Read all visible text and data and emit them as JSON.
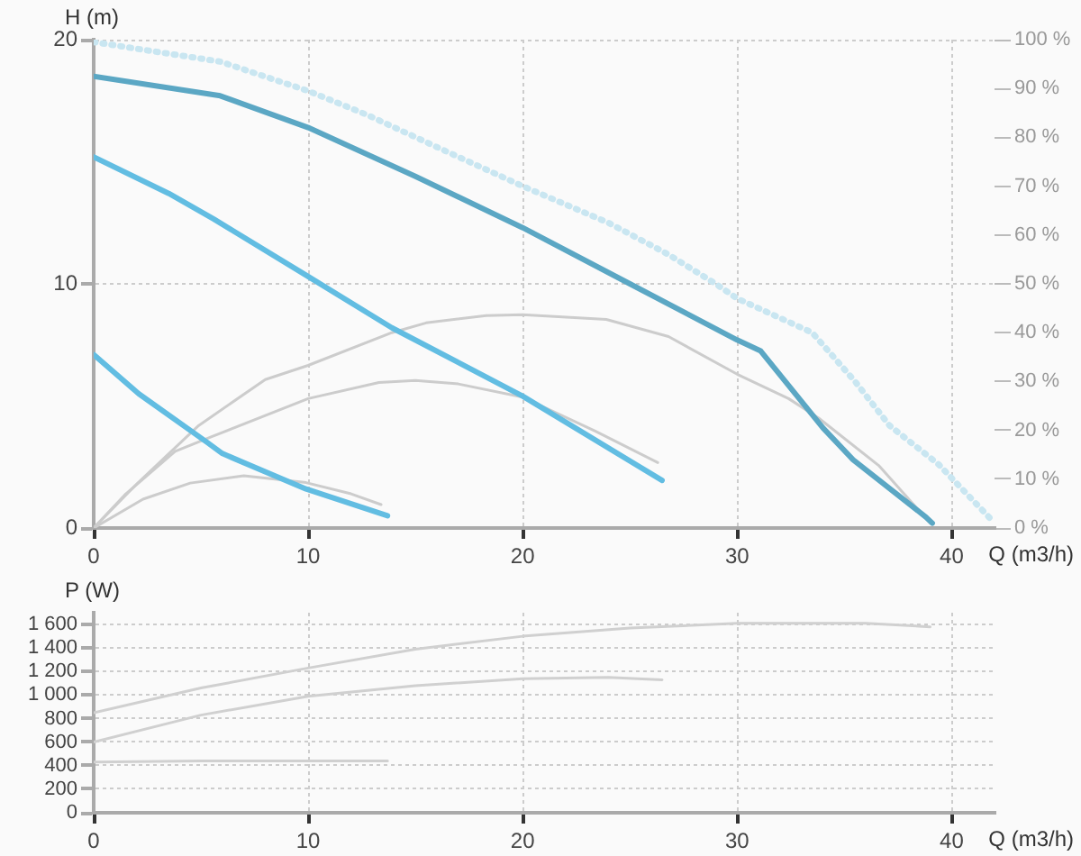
{
  "chart_data": [
    {
      "type": "line",
      "xlabel": "Q (m3/h)",
      "ylabel": "H (m)",
      "xlim": [
        0,
        42
      ],
      "xticks": [
        0,
        10,
        20,
        30,
        40
      ],
      "ylim": [
        0,
        20
      ],
      "yticks": [
        0,
        10,
        20
      ],
      "y2lim": [
        0,
        100
      ],
      "y2ticks": [
        {
          "value": 0,
          "label": "0 %"
        },
        {
          "value": 10,
          "label": "10 %"
        },
        {
          "value": 20,
          "label": "20 %"
        },
        {
          "value": 30,
          "label": "30 %"
        },
        {
          "value": 40,
          "label": "40 %"
        },
        {
          "value": 50,
          "label": "50 %"
        },
        {
          "value": 60,
          "label": "60 %"
        },
        {
          "value": 70,
          "label": "70 %"
        },
        {
          "value": 80,
          "label": "80 %"
        },
        {
          "value": 90,
          "label": "90 %"
        },
        {
          "value": 100,
          "label": "100 %"
        }
      ],
      "grid": true,
      "marker": "none",
      "series": [
        {
          "color": "#c9e6f1",
          "line_style": "dotted",
          "x": [
            0,
            5.9,
            10,
            12.8,
            16,
            20,
            24,
            26.8,
            29,
            30,
            33.5,
            35.5,
            37.1,
            39.4,
            41.9
          ],
          "values": [
            19.9,
            19.1,
            17.9,
            16.9,
            15.6,
            14.0,
            12.5,
            11.2,
            10.0,
            9.4,
            8.0,
            6.0,
            4.2,
            2.6,
            0.3
          ]
        },
        {
          "color": "#cccccc",
          "axis": "y2",
          "x": [
            0,
            2,
            4.9,
            8,
            10,
            13.9,
            15.5,
            18.3,
            20,
            23.9,
            26.8,
            30,
            32.4,
            33.8,
            36.6,
            39
          ],
          "values": [
            0,
            9,
            21,
            30.4,
            33.3,
            40,
            42,
            43.5,
            43.7,
            42.7,
            39.2,
            31.5,
            26.5,
            22.5,
            12.8,
            1
          ]
        },
        {
          "color": "#cccccc",
          "axis": "y2",
          "x": [
            0,
            1.5,
            3.8,
            5.5,
            10,
            13.3,
            15,
            17,
            20,
            23.4,
            26.3
          ],
          "values": [
            0,
            7,
            15.7,
            18.7,
            26.5,
            29.8,
            30.2,
            29.5,
            26.8,
            19.8,
            13.4
          ]
        },
        {
          "color": "#cccccc",
          "axis": "y2",
          "x": [
            0,
            2.3,
            4.5,
            7,
            9.9,
            12,
            13.4
          ],
          "values": [
            0,
            5.9,
            9.2,
            10.7,
            9.3,
            7,
            4.8
          ]
        },
        {
          "color": "#5ba7c4",
          "x": [
            0,
            5.9,
            10,
            15,
            20,
            25,
            30,
            31.1,
            34,
            35.4,
            38.8,
            39.1
          ],
          "values": [
            18.5,
            17.7,
            16.4,
            14.4,
            12.3,
            10.0,
            7.7,
            7.25,
            4.1,
            2.8,
            0.45,
            0.2
          ]
        },
        {
          "color": "#62bde2",
          "x": [
            0,
            3.5,
            5.6,
            10,
            13.9,
            20,
            26.5
          ],
          "values": [
            15.2,
            13.7,
            12.65,
            10.3,
            8.2,
            5.4,
            1.95
          ]
        },
        {
          "color": "#62bde2",
          "x": [
            0,
            2.1,
            5.3,
            6,
            9.9,
            13.7
          ],
          "values": [
            7.1,
            5.5,
            3.5,
            3.05,
            1.6,
            0.5
          ]
        }
      ]
    },
    {
      "type": "line",
      "xlabel": "Q (m3/h)",
      "ylabel": "P (W)",
      "xlim": [
        0,
        42
      ],
      "xticks": [
        0,
        10,
        20,
        30,
        40
      ],
      "ylim": [
        0,
        1700
      ],
      "yticks": [
        0,
        200,
        400,
        600,
        800,
        {
          "value": 1000,
          "label": "1 000"
        },
        {
          "value": 1200,
          "label": "1 200"
        },
        {
          "value": 1400,
          "label": "1 400"
        },
        {
          "value": 1600,
          "label": "1 600"
        }
      ],
      "grid": true,
      "marker": "none",
      "series": [
        {
          "color": "#d0d0d0",
          "x": [
            0,
            5,
            10,
            15,
            20,
            25,
            30,
            36,
            39
          ],
          "values": [
            850,
            1060,
            1230,
            1390,
            1500,
            1570,
            1610,
            1610,
            1580
          ]
        },
        {
          "color": "#d0d0d0",
          "x": [
            0,
            5,
            10,
            15,
            20,
            24,
            26.5
          ],
          "values": [
            600,
            830,
            990,
            1080,
            1140,
            1150,
            1130
          ]
        },
        {
          "color": "#d0d0d0",
          "x": [
            0,
            5,
            10,
            13.7
          ],
          "values": [
            430,
            440,
            440,
            440
          ]
        }
      ]
    }
  ]
}
